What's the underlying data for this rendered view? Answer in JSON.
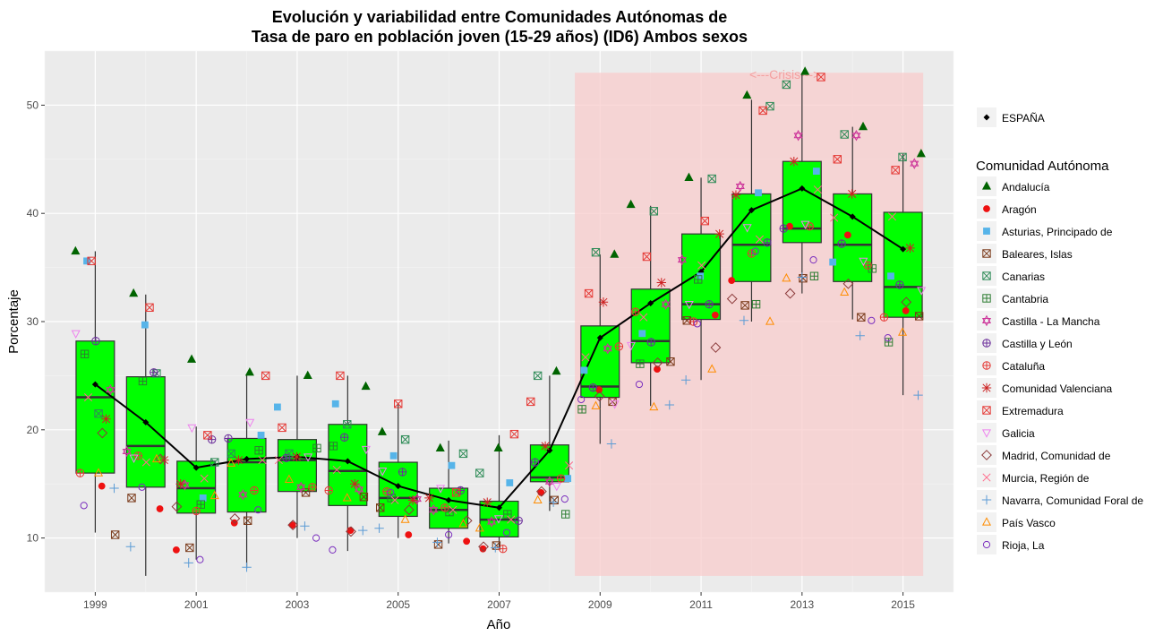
{
  "chart_data": {
    "type": "box",
    "title_lines": [
      "Evolución y variabilidad entre Comunidades Autónomas de",
      "Tasa de paro en población joven (15-29 años) (ID6) Ambos sexos"
    ],
    "xlabel": "Año",
    "ylabel": "Porcentaje",
    "xlim": [
      1998.0,
      2016.0
    ],
    "ylim": [
      5.0,
      55.0
    ],
    "x_ticks": [
      "1999",
      "2001",
      "2003",
      "2005",
      "2007",
      "2009",
      "2011",
      "2013",
      "2015"
    ],
    "y_ticks": [
      "10",
      "20",
      "30",
      "40",
      "50"
    ],
    "annotation": {
      "text": "<---Crisis--->",
      "x_from": 2008.5,
      "x_to": 2015.4,
      "y_from": 6.5,
      "y_to": 53.0
    },
    "grid": true,
    "legend_placement": "right",
    "boxes": [
      {
        "year": 1999,
        "q1": 16.0,
        "median": 23.0,
        "q3": 28.2,
        "low": 10.5,
        "high": 36.5
      },
      {
        "year": 2000,
        "q1": 14.7,
        "median": 18.5,
        "q3": 24.9,
        "low": 6.5,
        "high": 32.5
      },
      {
        "year": 2001,
        "q1": 12.3,
        "median": 14.6,
        "q3": 17.1,
        "low": 8.0,
        "high": 20.3
      },
      {
        "year": 2002,
        "q1": 12.4,
        "median": 17.0,
        "q3": 19.2,
        "low": 7.2,
        "high": 25.1
      },
      {
        "year": 2003,
        "q1": 14.3,
        "median": 17.2,
        "q3": 19.1,
        "low": 10.0,
        "high": 25.0
      },
      {
        "year": 2004,
        "q1": 13.0,
        "median": 16.2,
        "q3": 20.5,
        "low": 8.8,
        "high": 25.0
      },
      {
        "year": 2005,
        "q1": 12.0,
        "median": 13.7,
        "q3": 17.0,
        "low": 10.0,
        "high": 22.5
      },
      {
        "year": 2006,
        "q1": 10.9,
        "median": 12.6,
        "q3": 14.6,
        "low": 9.5,
        "high": 19.0
      },
      {
        "year": 2007,
        "q1": 10.1,
        "median": 11.7,
        "q3": 13.4,
        "low": 9.0,
        "high": 19.5
      },
      {
        "year": 2008,
        "q1": 15.2,
        "median": 15.6,
        "q3": 18.6,
        "low": 12.5,
        "high": 25.0
      },
      {
        "year": 2009,
        "q1": 23.0,
        "median": 24.0,
        "q3": 29.6,
        "low": 18.7,
        "high": 36.2
      },
      {
        "year": 2010,
        "q1": 26.2,
        "median": 28.2,
        "q3": 33.0,
        "low": 22.2,
        "high": 40.7
      },
      {
        "year": 2011,
        "q1": 30.2,
        "median": 31.6,
        "q3": 38.1,
        "low": 24.6,
        "high": 43.3
      },
      {
        "year": 2012,
        "q1": 33.7,
        "median": 37.1,
        "q3": 41.8,
        "low": 30.0,
        "high": 50.5
      },
      {
        "year": 2013,
        "q1": 37.3,
        "median": 38.6,
        "q3": 44.8,
        "low": 32.6,
        "high": 53.0
      },
      {
        "year": 2014,
        "q1": 33.7,
        "median": 37.1,
        "q3": 41.8,
        "low": 30.2,
        "high": 48.0
      },
      {
        "year": 2015,
        "q1": 30.4,
        "median": 33.2,
        "q3": 40.1,
        "low": 23.2,
        "high": 45.5
      }
    ],
    "espana": {
      "name": "ESPAÑA",
      "x": [
        1999,
        2000,
        2001,
        2002,
        2003,
        2004,
        2005,
        2006,
        2007,
        2008,
        2009,
        2010,
        2011,
        2012,
        2013,
        2014,
        2015
      ],
      "y": [
        24.2,
        20.7,
        16.5,
        17.3,
        17.5,
        17.1,
        14.8,
        13.5,
        12.8,
        18.1,
        28.5,
        31.7,
        34.6,
        40.3,
        42.3,
        39.7,
        36.7
      ]
    },
    "legend_title": "Comunidad Autónoma",
    "series": [
      {
        "name": "Andalucía",
        "shape": "triangle",
        "color": "#006400",
        "fill": true,
        "offset": -0.08,
        "values": [
          36.5,
          32.6,
          26.5,
          25.3,
          25.0,
          24.0,
          19.8,
          18.3,
          18.3,
          25.4,
          36.2,
          40.8,
          43.3,
          50.9,
          53.1,
          48.0,
          45.5
        ]
      },
      {
        "name": "Aragón",
        "shape": "circle",
        "color": "#ee1111",
        "fill": true,
        "offset": -0.1,
        "values": [
          14.8,
          12.7,
          8.9,
          11.4,
          11.2,
          10.7,
          10.3,
          9.7,
          9.0,
          14.2,
          23.7,
          25.6,
          30.6,
          33.8,
          38.8,
          38.0,
          31.0
        ]
      },
      {
        "name": "Asturias, Principado de",
        "shape": "square",
        "color": "#56b4e9",
        "fill": true,
        "offset": -0.08,
        "values": [
          35.6,
          29.7,
          13.7,
          19.5,
          22.1,
          22.4,
          17.6,
          16.7,
          15.1,
          15.5,
          25.5,
          28.9,
          34.2,
          41.9,
          43.9,
          35.5,
          34.2
        ]
      },
      {
        "name": "Baleares, Islas",
        "shape": "squarecross",
        "color": "#7a3a1a",
        "fill": false,
        "offset": 0.1,
        "values": [
          10.3,
          13.7,
          9.1,
          11.6,
          14.2,
          13.8,
          12.8,
          9.4,
          9.3,
          13.5,
          22.6,
          26.3,
          30.1,
          31.5,
          34.0,
          30.4,
          30.5
        ]
      },
      {
        "name": "Canarias",
        "shape": "squarex",
        "color": "#2e8b57",
        "fill": false,
        "offset": -0.05,
        "values": [
          21.5,
          25.2,
          17.0,
          17.8,
          17.8,
          20.5,
          19.1,
          17.8,
          16.0,
          25.0,
          36.4,
          40.2,
          43.2,
          49.9,
          51.9,
          47.3,
          45.2
        ]
      },
      {
        "name": "Cantabria",
        "shape": "squareplus",
        "color": "#2e7d32",
        "fill": false,
        "offset": 0.08,
        "values": [
          27.0,
          24.5,
          13.1,
          18.1,
          18.3,
          18.5,
          13.7,
          12.4,
          12.2,
          12.2,
          21.9,
          26.1,
          33.9,
          31.6,
          34.2,
          34.9,
          28.1
        ]
      },
      {
        "name": "Castilla - La Mancha",
        "shape": "star",
        "color": "#cc3399",
        "fill": false,
        "offset": 0.0,
        "values": [
          23.7,
          18.0,
          14.9,
          14.0,
          14.7,
          14.5,
          13.6,
          12.6,
          11.5,
          15.2,
          27.5,
          31.6,
          35.7,
          42.5,
          47.2,
          47.2,
          44.6
        ]
      },
      {
        "name": "Castilla y León",
        "shape": "circleplus",
        "color": "#6a2c9a",
        "fill": false,
        "offset": 0.05,
        "values": [
          28.2,
          25.3,
          19.1,
          19.2,
          17.4,
          19.3,
          16.1,
          14.4,
          11.6,
          17.0,
          23.9,
          28.1,
          31.6,
          37.3,
          38.6,
          37.2,
          33.4
        ]
      },
      {
        "name": "Cataluña",
        "shape": "circleplus",
        "color": "#e53935",
        "fill": false,
        "offset": 0.0,
        "values": [
          16.0,
          17.6,
          12.5,
          14.4,
          14.7,
          14.4,
          14.3,
          12.8,
          9.0,
          15.5,
          27.7,
          30.9,
          30.0,
          36.3,
          38.8,
          35.2,
          30.4
        ]
      },
      {
        "name": "Comunidad Valenciana",
        "shape": "asterisk",
        "color": "#cc2222",
        "fill": false,
        "offset": -0.05,
        "values": [
          21.0,
          17.2,
          15.0,
          17.2,
          17.5,
          15.0,
          13.5,
          13.7,
          13.3,
          18.5,
          31.8,
          33.6,
          38.1,
          41.7,
          44.8,
          41.8,
          36.8
        ]
      },
      {
        "name": "Extremadura",
        "shape": "squarex",
        "color": "#e53935",
        "fill": false,
        "offset": 0.0,
        "values": [
          35.6,
          31.3,
          19.5,
          25.0,
          20.2,
          25.0,
          22.4,
          14.2,
          19.6,
          22.6,
          32.6,
          36.0,
          39.3,
          49.5,
          52.6,
          45.0,
          44.0
        ]
      },
      {
        "name": "Galicia",
        "shape": "triangledown",
        "color": "#ee82ee",
        "fill": false,
        "offset": -0.05,
        "values": [
          28.9,
          17.4,
          20.2,
          20.7,
          17.5,
          18.2,
          16.2,
          14.6,
          11.8,
          14.8,
          22.4,
          27.8,
          31.6,
          38.7,
          39.0,
          35.6,
          32.9
        ]
      },
      {
        "name": "Madrid, Comunidad de",
        "shape": "diamond",
        "color": "#8b3a3a",
        "fill": false,
        "offset": -0.05,
        "values": [
          19.7,
          17.3,
          12.9,
          11.8,
          11.2,
          10.6,
          12.6,
          11.6,
          9.2,
          14.3,
          23.1,
          26.2,
          27.6,
          32.1,
          32.6,
          33.5,
          31.8
        ]
      },
      {
        "name": "Murcia, Región de",
        "shape": "x",
        "color": "#ff6b8b",
        "fill": false,
        "offset": 0.05,
        "values": [
          23.0,
          17.0,
          15.5,
          17.2,
          17.2,
          16.3,
          13.5,
          12.6,
          11.7,
          16.7,
          26.7,
          30.4,
          35.2,
          37.6,
          42.2,
          39.6,
          39.7
        ]
      },
      {
        "name": "Navarra, Comunidad Foral de",
        "shape": "plus",
        "color": "#5b9bd5",
        "fill": false,
        "offset": 0.0,
        "values": [
          14.6,
          9.2,
          7.7,
          7.3,
          11.1,
          10.7,
          10.9,
          9.6,
          9.1,
          13.3,
          18.7,
          22.3,
          24.6,
          30.1,
          34.1,
          28.7,
          23.2
        ]
      },
      {
        "name": "País Vasco",
        "shape": "triangleopen",
        "color": "#ff8c00",
        "fill": false,
        "offset": -0.05,
        "values": [
          16.0,
          17.3,
          13.9,
          16.9,
          15.4,
          13.7,
          11.7,
          11.3,
          10.9,
          13.5,
          22.2,
          22.1,
          25.6,
          30.0,
          34.0,
          32.7,
          29.0
        ]
      },
      {
        "name": "Rioja, La",
        "shape": "circleopen",
        "color": "#7b2fbe",
        "fill": false,
        "offset": 0.0,
        "values": [
          13.0,
          14.7,
          8.0,
          12.6,
          10.0,
          8.9,
          14.2,
          10.3,
          10.5,
          13.6,
          22.8,
          24.2,
          29.8,
          36.5,
          35.7,
          30.1,
          28.5
        ]
      }
    ]
  }
}
